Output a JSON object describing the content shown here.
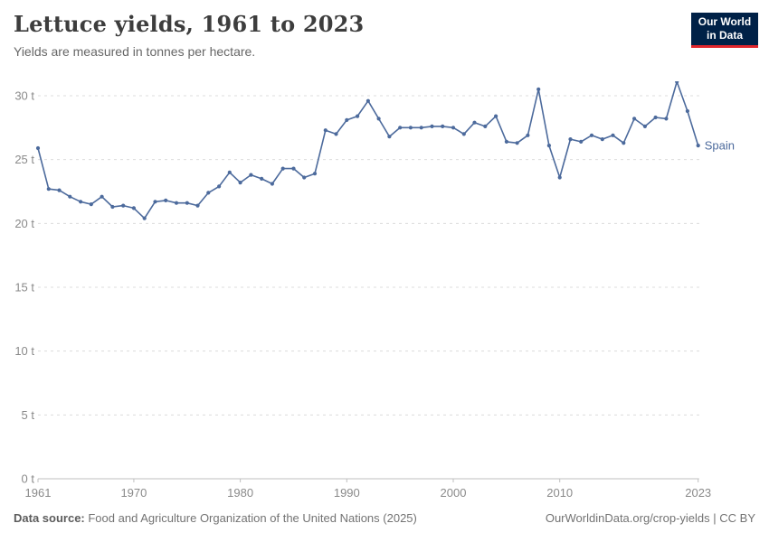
{
  "header": {
    "title": "Lettuce yields, 1961 to 2023",
    "subtitle": "Yields are measured in tonnes per hectare.",
    "logo": {
      "line1": "Our World",
      "line2": "in Data"
    }
  },
  "chart_data": {
    "type": "line",
    "title": "Lettuce yields, 1961 to 2023",
    "ylabel": "tonnes per hectare",
    "xlim": [
      1961,
      2023
    ],
    "ylim": [
      0,
      31.5
    ],
    "grid": "horizontal-dashed",
    "legend_position": "end-of-line-label",
    "x_ticks": [
      1961,
      1970,
      1980,
      1990,
      2000,
      2010,
      2023
    ],
    "y_ticks": [
      0,
      5,
      10,
      15,
      20,
      25,
      30
    ],
    "y_tick_suffix": " t",
    "series": [
      {
        "name": "Spain",
        "color": "#4c6a9c",
        "x": [
          1961,
          1962,
          1963,
          1964,
          1965,
          1966,
          1967,
          1968,
          1969,
          1970,
          1971,
          1972,
          1973,
          1974,
          1975,
          1976,
          1977,
          1978,
          1979,
          1980,
          1981,
          1982,
          1983,
          1984,
          1985,
          1986,
          1987,
          1988,
          1989,
          1990,
          1991,
          1992,
          1993,
          1994,
          1995,
          1996,
          1997,
          1998,
          1999,
          2000,
          2001,
          2002,
          2003,
          2004,
          2005,
          2006,
          2007,
          2008,
          2009,
          2010,
          2011,
          2012,
          2013,
          2014,
          2015,
          2016,
          2017,
          2018,
          2019,
          2020,
          2021,
          2022,
          2023
        ],
        "values": [
          25.9,
          22.7,
          22.6,
          22.1,
          21.7,
          21.5,
          22.1,
          21.3,
          21.4,
          21.2,
          20.4,
          21.7,
          21.8,
          21.6,
          21.6,
          21.4,
          22.4,
          22.9,
          24.0,
          23.2,
          23.8,
          23.5,
          23.1,
          24.3,
          24.3,
          23.6,
          23.9,
          27.3,
          27.0,
          28.1,
          28.4,
          29.6,
          28.2,
          26.8,
          27.5,
          27.5,
          27.5,
          27.6,
          27.6,
          27.5,
          27.0,
          27.9,
          27.6,
          28.4,
          26.4,
          26.3,
          26.9,
          30.5,
          26.1,
          23.6,
          26.6,
          26.4,
          26.9,
          26.6,
          26.9,
          26.3,
          28.2,
          27.6,
          28.3,
          28.2,
          31.1,
          28.8,
          26.1
        ]
      }
    ]
  },
  "colors": {
    "line": "#4c6a9c",
    "grid": "#dcdcdc",
    "axis": "#bfbfbf",
    "tick_label": "#8a8a8a",
    "logo_bg": "#002147",
    "logo_bar": "#e0262c"
  },
  "footer": {
    "source_label": "Data source:",
    "source_text": " Food and Agriculture Organization of the United Nations (2025)",
    "credit": "OurWorldinData.org/crop-yields | CC BY"
  }
}
